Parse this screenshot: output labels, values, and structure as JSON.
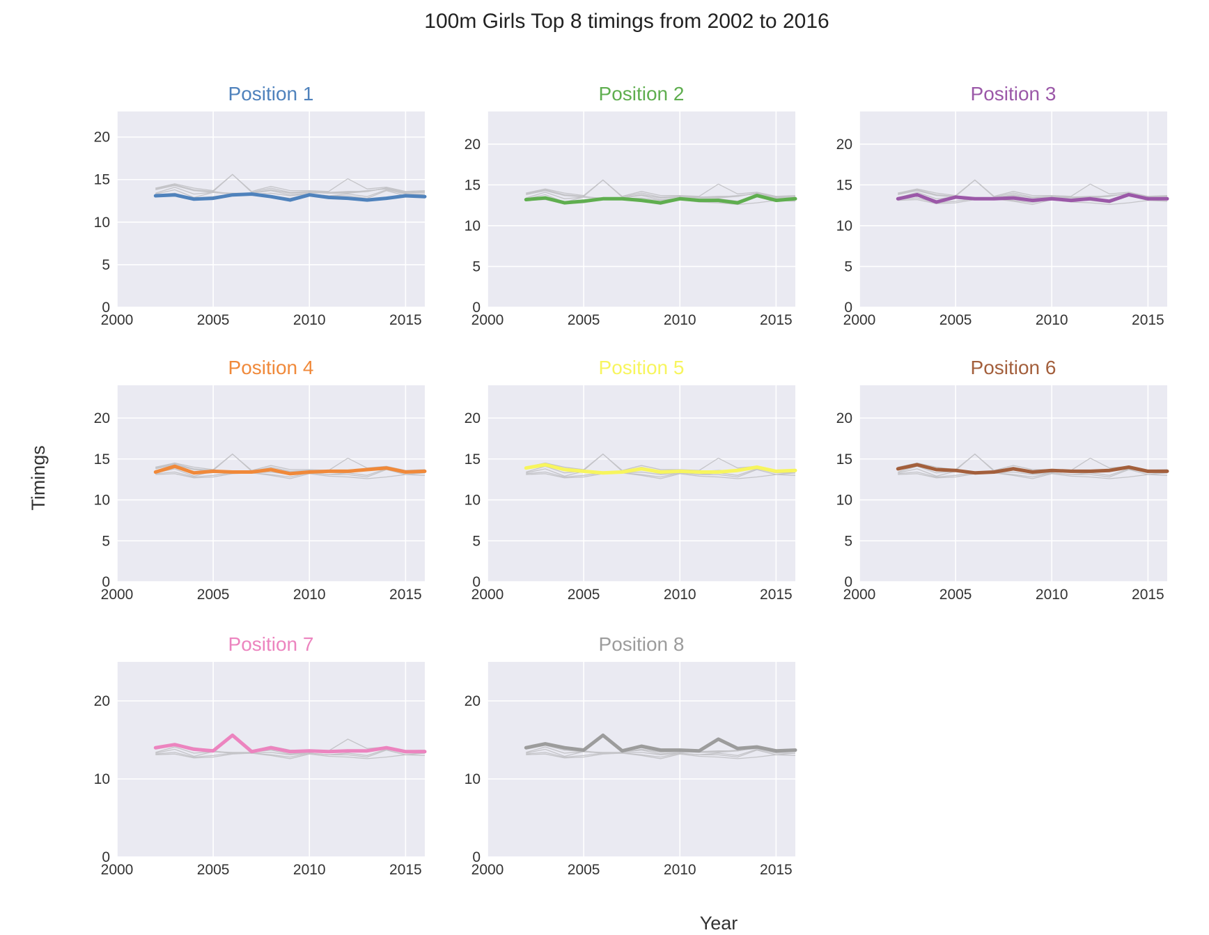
{
  "figure": {
    "title": "100m Girls Top 8 timings from 2002 to 2016",
    "xlabel": "Year",
    "ylabel": "Timings"
  },
  "chart_data": {
    "type": "line",
    "title": "100m Girls Top 8 timings from 2002 to 2016",
    "xlabel": "Year",
    "ylabel": "Timings",
    "x": [
      2002,
      2003,
      2004,
      2005,
      2006,
      2007,
      2008,
      2009,
      2010,
      2011,
      2012,
      2013,
      2014,
      2015,
      2016
    ],
    "xlim": [
      2000,
      2016
    ],
    "xticks": [
      "2000",
      "2005",
      "2010",
      "2015"
    ],
    "grid": true,
    "series": [
      {
        "name": "Position 1",
        "color": "#4f82bc",
        "ylim": [
          0,
          23
        ],
        "yticks": [
          "0",
          "5",
          "10",
          "15",
          "20"
        ],
        "values": [
          13.1,
          13.2,
          12.7,
          12.8,
          13.2,
          13.3,
          13.0,
          12.6,
          13.2,
          12.9,
          12.8,
          12.6,
          12.8,
          13.1,
          13.0
        ]
      },
      {
        "name": "Position 2",
        "color": "#5fae4f",
        "ylim": [
          0,
          24
        ],
        "yticks": [
          "0",
          "5",
          "10",
          "15",
          "20"
        ],
        "values": [
          13.2,
          13.4,
          12.8,
          13.0,
          13.3,
          13.3,
          13.1,
          12.8,
          13.3,
          13.1,
          13.1,
          12.8,
          13.7,
          13.1,
          13.3
        ]
      },
      {
        "name": "Position 3",
        "color": "#9b58a8",
        "ylim": [
          0,
          24
        ],
        "yticks": [
          "0",
          "5",
          "10",
          "15",
          "20"
        ],
        "values": [
          13.3,
          13.8,
          12.9,
          13.5,
          13.3,
          13.3,
          13.4,
          13.1,
          13.3,
          13.1,
          13.3,
          13.0,
          13.8,
          13.3,
          13.3
        ]
      },
      {
        "name": "Position 4",
        "color": "#f0893a",
        "ylim": [
          0,
          24
        ],
        "yticks": [
          "0",
          "5",
          "10",
          "15",
          "20"
        ],
        "values": [
          13.4,
          14.1,
          13.3,
          13.5,
          13.4,
          13.4,
          13.7,
          13.2,
          13.4,
          13.5,
          13.5,
          13.7,
          13.9,
          13.4,
          13.5
        ]
      },
      {
        "name": "Position 5",
        "color": "#f7f55e",
        "ylim": [
          0,
          24
        ],
        "yticks": [
          "0",
          "5",
          "10",
          "15",
          "20"
        ],
        "values": [
          13.9,
          14.3,
          13.7,
          13.5,
          13.3,
          13.4,
          13.8,
          13.4,
          13.5,
          13.4,
          13.4,
          13.6,
          14.0,
          13.5,
          13.6
        ]
      },
      {
        "name": "Position 6",
        "color": "#a35f3c",
        "ylim": [
          0,
          24
        ],
        "yticks": [
          "0",
          "5",
          "10",
          "15",
          "20"
        ],
        "values": [
          13.8,
          14.3,
          13.7,
          13.6,
          13.3,
          13.4,
          13.8,
          13.4,
          13.6,
          13.5,
          13.5,
          13.6,
          14.0,
          13.5,
          13.5
        ]
      },
      {
        "name": "Position 7",
        "color": "#ec84bf",
        "ylim": [
          0,
          25
        ],
        "yticks": [
          "0",
          "10",
          "20"
        ],
        "values": [
          14.0,
          14.4,
          13.8,
          13.6,
          15.6,
          13.5,
          14.0,
          13.5,
          13.6,
          13.5,
          13.6,
          13.6,
          14.0,
          13.5,
          13.5
        ]
      },
      {
        "name": "Position 8",
        "color": "#9c9c9c",
        "ylim": [
          0,
          25
        ],
        "yticks": [
          "0",
          "10",
          "20"
        ],
        "values": [
          14.0,
          14.5,
          14.0,
          13.7,
          15.6,
          13.6,
          14.2,
          13.7,
          13.7,
          13.6,
          15.1,
          13.9,
          14.1,
          13.6,
          13.7
        ]
      }
    ]
  }
}
